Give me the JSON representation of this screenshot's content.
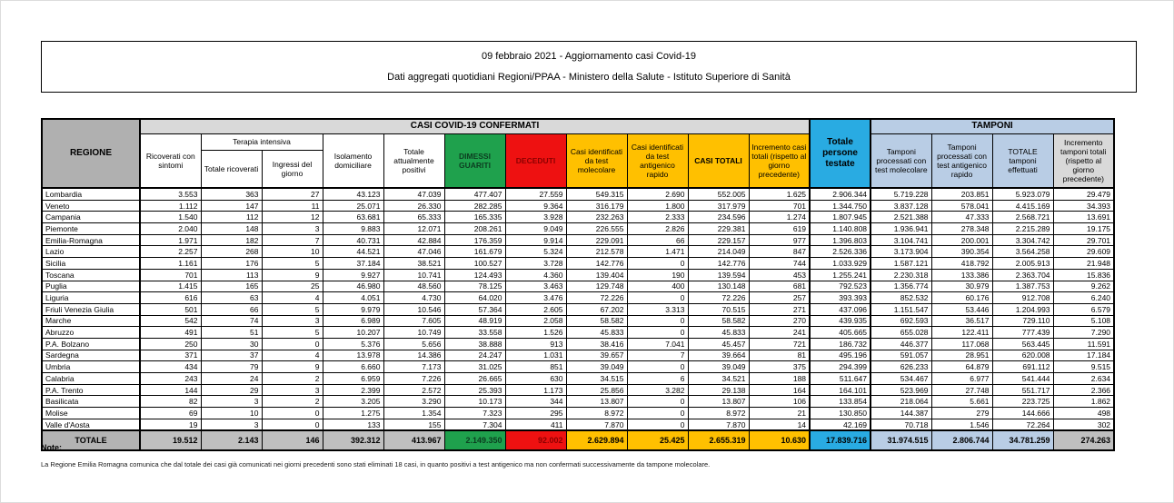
{
  "title": {
    "line1": "09 febbraio 2021 - Aggiornamento casi Covid-19",
    "line2": "Dati aggregati quotidiani Regioni/PPAA - Ministero della Salute - Istituto Superiore di Sanità"
  },
  "table": {
    "region_header": "REGIONE",
    "groups": {
      "confirmed": "CASI COVID-19 CONFERMATI",
      "terapia": "Terapia intensiva",
      "tamponi": "TAMPONI"
    },
    "columns": [
      {
        "label": "Ricoverati con sintomi"
      },
      {
        "label": "Totale ricoverati"
      },
      {
        "label": "Ingressi del giorno"
      },
      {
        "label": "Isolamento domiciliare"
      },
      {
        "label": "Totale attualmente positivi"
      },
      {
        "label": "DIMESSI GUARITI"
      },
      {
        "label": "DECEDUTI"
      },
      {
        "label": "Casi identificati da test molecolare"
      },
      {
        "label": "Casi identificati da test antigenico rapido"
      },
      {
        "label": "CASI TOTALI"
      },
      {
        "label": "Incremento casi totali (rispetto al giorno precedente)"
      },
      {
        "label": "Totale persone testate"
      },
      {
        "label": "Tamponi processati con test molecolare"
      },
      {
        "label": "Tamponi processati con test antigenico rapido"
      },
      {
        "label": "TOTALE tamponi effettuati"
      },
      {
        "label": "Incremento tamponi totali (rispetto al giorno precedente)"
      }
    ],
    "rows": [
      {
        "region": "Lombardia",
        "values": [
          "3.553",
          "363",
          "27",
          "43.123",
          "47.039",
          "477.407",
          "27.559",
          "549.315",
          "2.690",
          "552.005",
          "1.625",
          "2.906.344",
          "5.719.228",
          "203.851",
          "5.923.079",
          "29.479"
        ]
      },
      {
        "region": "Veneto",
        "values": [
          "1.112",
          "147",
          "11",
          "25.071",
          "26.330",
          "282.285",
          "9.364",
          "316.179",
          "1.800",
          "317.979",
          "701",
          "1.344.750",
          "3.837.128",
          "578.041",
          "4.415.169",
          "34.393"
        ]
      },
      {
        "region": "Campania",
        "values": [
          "1.540",
          "112",
          "12",
          "63.681",
          "65.333",
          "165.335",
          "3.928",
          "232.263",
          "2.333",
          "234.596",
          "1.274",
          "1.807.945",
          "2.521.388",
          "47.333",
          "2.568.721",
          "13.691"
        ]
      },
      {
        "region": "Piemonte",
        "values": [
          "2.040",
          "148",
          "3",
          "9.883",
          "12.071",
          "208.261",
          "9.049",
          "226.555",
          "2.826",
          "229.381",
          "619",
          "1.140.808",
          "1.936.941",
          "278.348",
          "2.215.289",
          "19.175"
        ]
      },
      {
        "region": "Emilia-Romagna",
        "values": [
          "1.971",
          "182",
          "7",
          "40.731",
          "42.884",
          "176.359",
          "9.914",
          "229.091",
          "66",
          "229.157",
          "977",
          "1.396.803",
          "3.104.741",
          "200.001",
          "3.304.742",
          "29.701"
        ]
      },
      {
        "region": "Lazio",
        "values": [
          "2.257",
          "268",
          "10",
          "44.521",
          "47.046",
          "161.679",
          "5.324",
          "212.578",
          "1.471",
          "214.049",
          "847",
          "2.526.336",
          "3.173.904",
          "390.354",
          "3.564.258",
          "29.609"
        ]
      },
      {
        "region": "Sicilia",
        "values": [
          "1.161",
          "176",
          "5",
          "37.184",
          "38.521",
          "100.527",
          "3.728",
          "142.776",
          "0",
          "142.776",
          "744",
          "1.033.929",
          "1.587.121",
          "418.792",
          "2.005.913",
          "21.948"
        ]
      },
      {
        "region": "Toscana",
        "values": [
          "701",
          "113",
          "9",
          "9.927",
          "10.741",
          "124.493",
          "4.360",
          "139.404",
          "190",
          "139.594",
          "453",
          "1.255.241",
          "2.230.318",
          "133.386",
          "2.363.704",
          "15.836"
        ]
      },
      {
        "region": "Puglia",
        "values": [
          "1.415",
          "165",
          "25",
          "46.980",
          "48.560",
          "78.125",
          "3.463",
          "129.748",
          "400",
          "130.148",
          "681",
          "792.523",
          "1.356.774",
          "30.979",
          "1.387.753",
          "9.262"
        ]
      },
      {
        "region": "Liguria",
        "values": [
          "616",
          "63",
          "4",
          "4.051",
          "4.730",
          "64.020",
          "3.476",
          "72.226",
          "0",
          "72.226",
          "257",
          "393.393",
          "852.532",
          "60.176",
          "912.708",
          "6.240"
        ]
      },
      {
        "region": "Friuli Venezia Giulia",
        "values": [
          "501",
          "66",
          "5",
          "9.979",
          "10.546",
          "57.364",
          "2.605",
          "67.202",
          "3.313",
          "70.515",
          "271",
          "437.096",
          "1.151.547",
          "53.446",
          "1.204.993",
          "6.579"
        ]
      },
      {
        "region": "Marche",
        "values": [
          "542",
          "74",
          "3",
          "6.989",
          "7.605",
          "48.919",
          "2.058",
          "58.582",
          "0",
          "58.582",
          "270",
          "439.935",
          "692.593",
          "36.517",
          "729.110",
          "5.108"
        ]
      },
      {
        "region": "Abruzzo",
        "values": [
          "491",
          "51",
          "5",
          "10.207",
          "10.749",
          "33.558",
          "1.526",
          "45.833",
          "0",
          "45.833",
          "241",
          "405.665",
          "655.028",
          "122.411",
          "777.439",
          "7.290"
        ]
      },
      {
        "region": "P.A. Bolzano",
        "values": [
          "250",
          "30",
          "0",
          "5.376",
          "5.656",
          "38.888",
          "913",
          "38.416",
          "7.041",
          "45.457",
          "721",
          "186.732",
          "446.377",
          "117.068",
          "563.445",
          "11.591"
        ]
      },
      {
        "region": "Sardegna",
        "values": [
          "371",
          "37",
          "4",
          "13.978",
          "14.386",
          "24.247",
          "1.031",
          "39.657",
          "7",
          "39.664",
          "81",
          "495.196",
          "591.057",
          "28.951",
          "620.008",
          "17.184"
        ]
      },
      {
        "region": "Umbria",
        "values": [
          "434",
          "79",
          "9",
          "6.660",
          "7.173",
          "31.025",
          "851",
          "39.049",
          "0",
          "39.049",
          "375",
          "294.399",
          "626.233",
          "64.879",
          "691.112",
          "9.515"
        ]
      },
      {
        "region": "Calabria",
        "values": [
          "243",
          "24",
          "2",
          "6.959",
          "7.226",
          "26.665",
          "630",
          "34.515",
          "6",
          "34.521",
          "188",
          "511.647",
          "534.467",
          "6.977",
          "541.444",
          "2.634"
        ]
      },
      {
        "region": "P.A. Trento",
        "values": [
          "144",
          "29",
          "3",
          "2.399",
          "2.572",
          "25.393",
          "1.173",
          "25.856",
          "3.282",
          "29.138",
          "164",
          "164.101",
          "523.969",
          "27.748",
          "551.717",
          "2.366"
        ]
      },
      {
        "region": "Basilicata",
        "values": [
          "82",
          "3",
          "2",
          "3.205",
          "3.290",
          "10.173",
          "344",
          "13.807",
          "0",
          "13.807",
          "106",
          "133.854",
          "218.064",
          "5.661",
          "223.725",
          "1.862"
        ]
      },
      {
        "region": "Molise",
        "values": [
          "69",
          "10",
          "0",
          "1.275",
          "1.354",
          "7.323",
          "295",
          "8.972",
          "0",
          "8.972",
          "21",
          "130.850",
          "144.387",
          "279",
          "144.666",
          "498"
        ]
      },
      {
        "region": "Valle d'Aosta",
        "values": [
          "19",
          "3",
          "0",
          "133",
          "155",
          "7.304",
          "411",
          "7.870",
          "0",
          "7.870",
          "14",
          "42.169",
          "70.718",
          "1.546",
          "72.264",
          "302"
        ]
      }
    ],
    "total": {
      "region": "TOTALE",
      "values": [
        "19.512",
        "2.143",
        "146",
        "392.312",
        "413.967",
        "2.149.350",
        "92.002",
        "2.629.894",
        "25.425",
        "2.655.319",
        "10.630",
        "17.839.716",
        "31.974.515",
        "2.806.744",
        "34.781.259",
        "274.263"
      ]
    }
  },
  "note": {
    "label": "Note:",
    "text": "La Regione Emilia Romagna comunica che dal totale dei casi già comunicati nei giorni precedenti sono stati eliminati 18 casi, in quanto positivi a test antigenico ma non confermati successivamente da tampone molecolare."
  },
  "colors": {
    "recovered_green": "#1fa14d",
    "deceased_red": "#ee1111",
    "cases_yellow": "#ffc000",
    "tested_cyan": "#29abe2",
    "swabs_lightblue": "#b9cde5",
    "band_gray": "#d9d9d9",
    "region_header_gray": "#b0b0b0",
    "total_row_gray": "#bfbfbf"
  }
}
